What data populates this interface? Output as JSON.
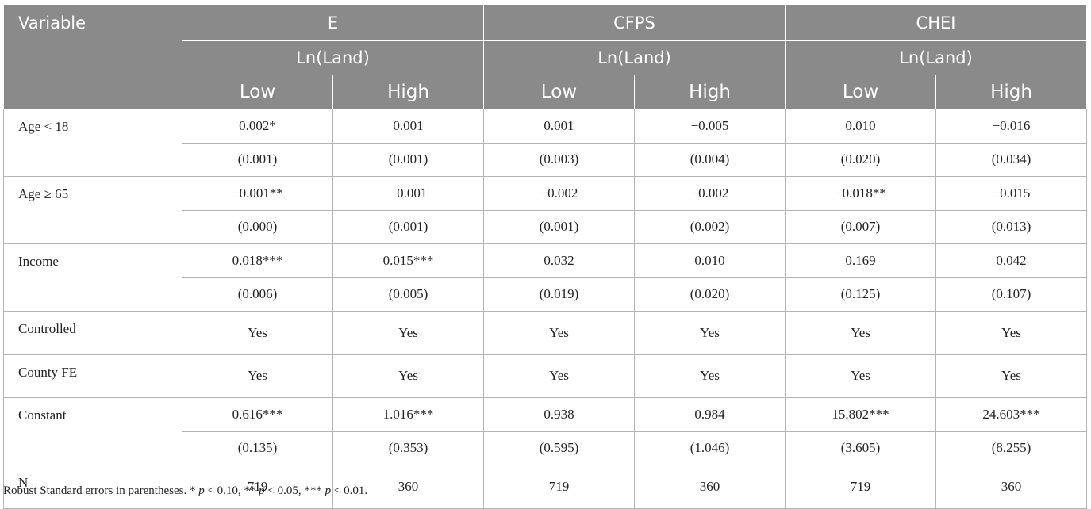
{
  "header": {
    "variable_label": "Variable",
    "groups": [
      "E",
      "CFPS",
      "CHEI"
    ],
    "sublabel": "Ln(Land)",
    "sub_low": "Low",
    "sub_high": "High"
  },
  "rows": [
    {
      "label": "Age < 18",
      "coef": [
        "0.002*",
        "0.001",
        "0.001",
        "−0.005",
        "0.010",
        "−0.016"
      ],
      "se": [
        "(0.001)",
        "(0.001)",
        "(0.003)",
        "(0.004)",
        "(0.020)",
        "(0.034)"
      ]
    },
    {
      "label": "Age ≥ 65",
      "coef": [
        "−0.001**",
        "−0.001",
        "−0.002",
        "−0.002",
        "−0.018**",
        "−0.015"
      ],
      "se": [
        "(0.000)",
        "(0.001)",
        "(0.001)",
        "(0.002)",
        "(0.007)",
        "(0.013)"
      ]
    },
    {
      "label": "Income",
      "coef": [
        "0.018***",
        "0.015***",
        "0.032",
        "0.010",
        "0.169",
        "0.042"
      ],
      "se": [
        "(0.006)",
        "(0.005)",
        "(0.019)",
        "(0.020)",
        "(0.125)",
        "(0.107)"
      ]
    },
    {
      "label": "Controlled",
      "coef": [
        "Yes",
        "Yes",
        "Yes",
        "Yes",
        "Yes",
        "Yes"
      ]
    },
    {
      "label": "County FE",
      "coef": [
        "Yes",
        "Yes",
        "Yes",
        "Yes",
        "Yes",
        "Yes"
      ]
    },
    {
      "label": "Constant",
      "coef": [
        "0.616***",
        "1.016***",
        "0.938",
        "0.984",
        "15.802***",
        "24.603***"
      ],
      "se": [
        "(0.135)",
        "(0.353)",
        "(0.595)",
        "(1.046)",
        "(3.605)",
        "(8.255)"
      ]
    },
    {
      "label": "N",
      "coef": [
        "719",
        "360",
        "719",
        "360",
        "719",
        "360"
      ]
    }
  ],
  "footnote": {
    "lead": "Robust Standard errors in parentheses. * ",
    "p": "p",
    "t1": " < 0.10, ** ",
    "t2": " < 0.05, *** ",
    "t3": " < 0.01."
  }
}
